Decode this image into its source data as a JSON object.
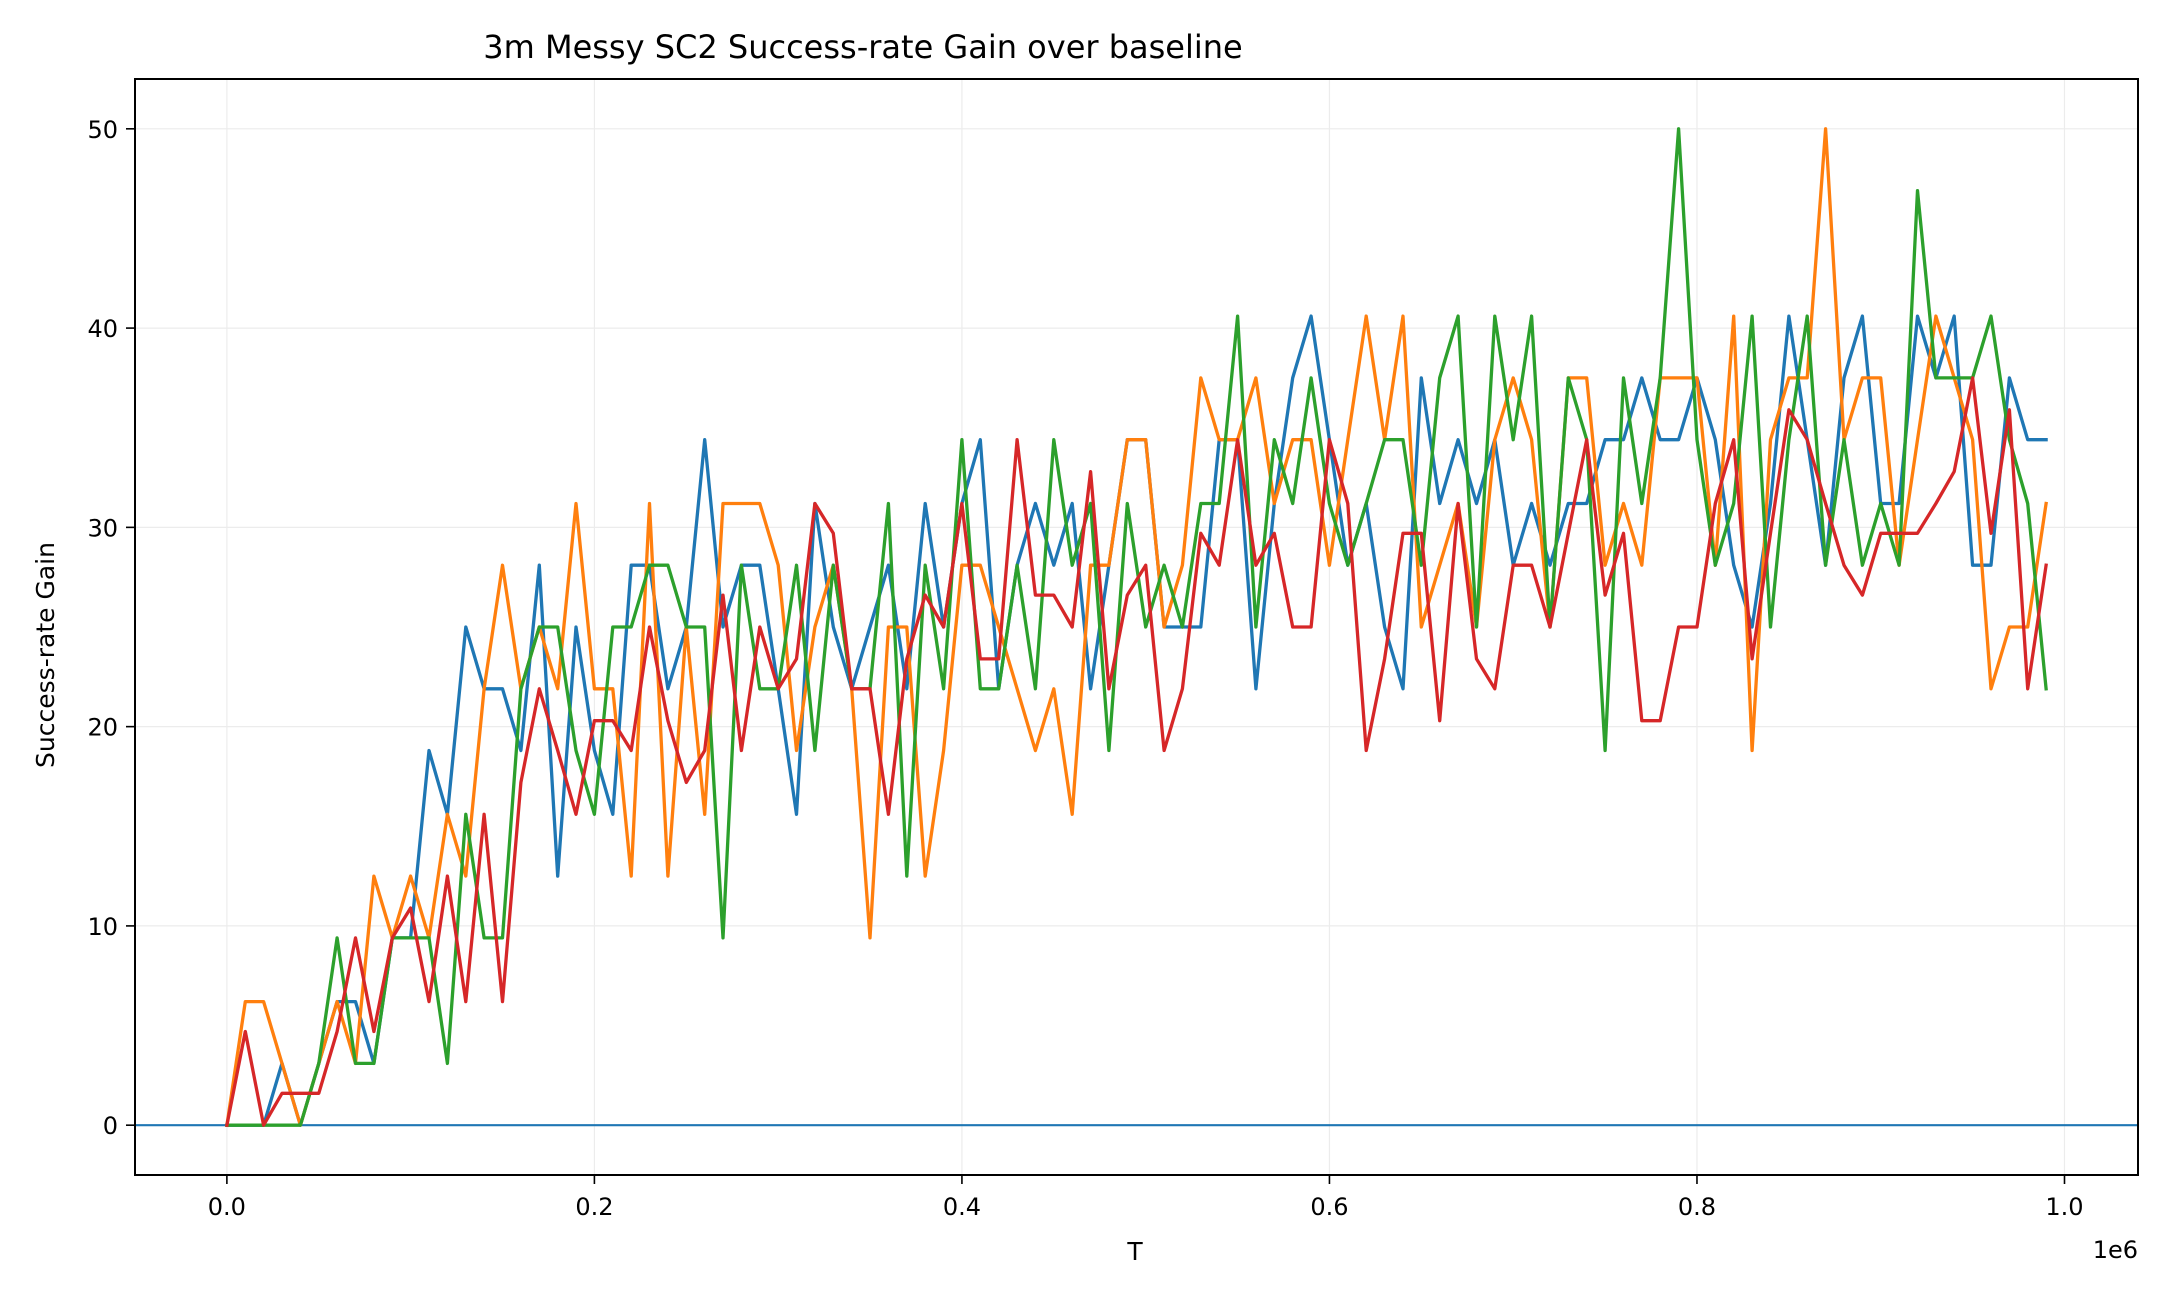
{
  "chart_data": {
    "type": "line",
    "title": "3m Messy SC2 Success-rate Gain over baseline",
    "xlabel": "T",
    "ylabel": "Success-rate Gain",
    "x_offset_label": "1e6",
    "xlim": [
      -0.05,
      1.04
    ],
    "ylim": [
      -2.5,
      52.5
    ],
    "x_ticks": [
      0.0,
      0.2,
      0.4,
      0.6,
      0.8,
      1.0
    ],
    "x_tick_labels": [
      "0.0",
      "0.2",
      "0.4",
      "0.6",
      "0.8",
      "1.0"
    ],
    "y_ticks": [
      0,
      10,
      20,
      30,
      40,
      50
    ],
    "y_tick_labels": [
      "0",
      "10",
      "20",
      "30",
      "40",
      "50"
    ],
    "grid": true,
    "baseline": 0,
    "x": [
      0.0,
      0.01,
      0.02,
      0.03,
      0.04,
      0.05,
      0.06,
      0.07,
      0.08,
      0.09,
      0.1,
      0.11,
      0.12,
      0.13,
      0.14,
      0.15,
      0.16,
      0.17,
      0.18,
      0.19,
      0.2,
      0.21,
      0.22,
      0.23,
      0.24,
      0.25,
      0.26,
      0.27,
      0.28,
      0.29,
      0.3,
      0.31,
      0.32,
      0.33,
      0.34,
      0.35,
      0.36,
      0.37,
      0.38,
      0.39,
      0.4,
      0.41,
      0.42,
      0.43,
      0.44,
      0.45,
      0.46,
      0.47,
      0.48,
      0.49,
      0.5,
      0.51,
      0.52,
      0.53,
      0.54,
      0.55,
      0.56,
      0.57,
      0.58,
      0.59,
      0.6,
      0.61,
      0.62,
      0.63,
      0.64,
      0.65,
      0.66,
      0.67,
      0.68,
      0.69,
      0.7,
      0.71,
      0.72,
      0.73,
      0.74,
      0.75,
      0.76,
      0.77,
      0.78,
      0.79,
      0.8,
      0.81,
      0.82,
      0.83,
      0.84,
      0.85,
      0.86,
      0.87,
      0.88,
      0.89,
      0.9,
      0.91,
      0.92,
      0.93,
      0.94,
      0.95,
      0.96,
      0.97,
      0.98,
      0.99
    ],
    "series": [
      {
        "color": "#1f77b4",
        "values": [
          0,
          0,
          0,
          3.1,
          0,
          3.1,
          6.2,
          6.2,
          3.1,
          9.4,
          9.4,
          18.8,
          15.6,
          25.0,
          21.9,
          21.9,
          18.8,
          28.1,
          12.5,
          25.0,
          18.8,
          15.6,
          28.1,
          28.1,
          21.9,
          25.0,
          34.4,
          25.0,
          28.1,
          28.1,
          21.9,
          15.6,
          31.2,
          25.0,
          21.9,
          25.0,
          28.1,
          21.9,
          31.2,
          25.0,
          31.2,
          34.4,
          21.9,
          28.1,
          31.2,
          28.1,
          31.2,
          21.9,
          28.1,
          34.4,
          34.4,
          25.0,
          25.0,
          25.0,
          34.4,
          34.4,
          21.9,
          31.2,
          37.5,
          40.6,
          34.4,
          28.1,
          31.2,
          25.0,
          21.9,
          37.5,
          31.2,
          34.4,
          31.2,
          34.4,
          28.1,
          31.2,
          28.1,
          31.2,
          31.2,
          34.4,
          34.4,
          37.5,
          34.4,
          34.4,
          37.5,
          34.4,
          28.1,
          25.0,
          31.2,
          40.6,
          34.4,
          28.1,
          37.5,
          40.6,
          31.2,
          31.2,
          40.6,
          37.5,
          40.6,
          28.1,
          28.1,
          37.5,
          34.4,
          34.4
        ]
      },
      {
        "color": "#ff7f0e",
        "values": [
          0,
          6.2,
          6.2,
          3.1,
          0,
          3.1,
          6.2,
          3.1,
          12.5,
          9.4,
          12.5,
          9.4,
          15.6,
          12.5,
          21.9,
          28.1,
          21.9,
          25.0,
          21.9,
          31.2,
          21.9,
          21.9,
          12.5,
          31.2,
          12.5,
          25.0,
          15.6,
          31.2,
          31.2,
          31.2,
          28.1,
          18.8,
          25.0,
          28.1,
          21.9,
          9.4,
          25.0,
          25.0,
          12.5,
          18.8,
          28.1,
          28.1,
          25.0,
          21.9,
          18.8,
          21.9,
          15.6,
          28.1,
          28.1,
          34.4,
          34.4,
          25.0,
          28.1,
          37.5,
          34.4,
          34.4,
          37.5,
          31.2,
          34.4,
          34.4,
          28.1,
          34.4,
          40.6,
          34.4,
          40.6,
          25.0,
          28.1,
          31.2,
          25.0,
          34.4,
          37.5,
          34.4,
          25.0,
          37.5,
          37.5,
          28.1,
          31.2,
          28.1,
          37.5,
          37.5,
          37.5,
          28.1,
          40.6,
          18.8,
          34.4,
          37.5,
          37.5,
          50.0,
          34.4,
          37.5,
          37.5,
          28.1,
          34.4,
          40.6,
          37.5,
          34.4,
          21.9,
          25.0,
          25.0,
          31.2
        ]
      },
      {
        "color": "#2ca02c",
        "values": [
          0,
          0,
          0,
          0,
          0,
          3.1,
          9.4,
          3.1,
          3.1,
          9.4,
          9.4,
          9.4,
          3.1,
          15.6,
          9.4,
          9.4,
          21.9,
          25.0,
          25.0,
          18.8,
          15.6,
          25.0,
          25.0,
          28.1,
          28.1,
          25.0,
          25.0,
          9.4,
          28.1,
          21.9,
          21.9,
          28.1,
          18.8,
          28.1,
          21.9,
          21.9,
          31.2,
          12.5,
          28.1,
          21.9,
          34.4,
          21.9,
          21.9,
          28.1,
          21.9,
          34.4,
          28.1,
          31.2,
          18.8,
          31.2,
          25.0,
          28.1,
          25.0,
          31.2,
          31.2,
          40.6,
          25.0,
          34.4,
          31.2,
          37.5,
          31.2,
          28.1,
          31.2,
          34.4,
          34.4,
          28.1,
          37.5,
          40.6,
          25.0,
          40.6,
          34.4,
          40.6,
          25.0,
          37.5,
          34.4,
          18.8,
          37.5,
          31.2,
          37.5,
          50.0,
          34.4,
          28.1,
          31.2,
          40.6,
          25.0,
          34.4,
          40.6,
          28.1,
          34.4,
          28.1,
          31.2,
          28.1,
          46.9,
          37.5,
          37.5,
          37.5,
          40.6,
          34.4,
          31.2,
          21.9
        ]
      },
      {
        "color": "#d62728",
        "values": [
          0,
          4.7,
          0,
          1.6,
          1.6,
          1.6,
          4.7,
          9.4,
          4.7,
          9.4,
          10.9,
          6.2,
          12.5,
          6.2,
          15.6,
          6.2,
          17.2,
          21.9,
          18.8,
          15.6,
          20.3,
          20.3,
          18.8,
          25.0,
          20.3,
          17.2,
          18.8,
          26.6,
          18.8,
          25.0,
          21.9,
          23.4,
          31.2,
          29.7,
          21.9,
          21.9,
          15.6,
          23.4,
          26.6,
          25.0,
          31.2,
          23.4,
          23.4,
          34.4,
          26.6,
          26.6,
          25.0,
          32.8,
          21.9,
          26.6,
          28.1,
          18.8,
          21.9,
          29.7,
          28.1,
          34.4,
          28.1,
          29.7,
          25.0,
          25.0,
          34.4,
          31.2,
          18.8,
          23.4,
          29.7,
          29.7,
          20.3,
          31.2,
          23.4,
          21.9,
          28.1,
          28.1,
          25.0,
          29.7,
          34.4,
          26.6,
          29.7,
          20.3,
          20.3,
          25.0,
          25.0,
          31.2,
          34.4,
          23.4,
          29.7,
          35.9,
          34.4,
          31.2,
          28.1,
          26.6,
          29.7,
          29.7,
          29.7,
          31.2,
          32.8,
          37.5,
          29.7,
          35.9,
          21.9,
          28.1
        ]
      }
    ]
  }
}
